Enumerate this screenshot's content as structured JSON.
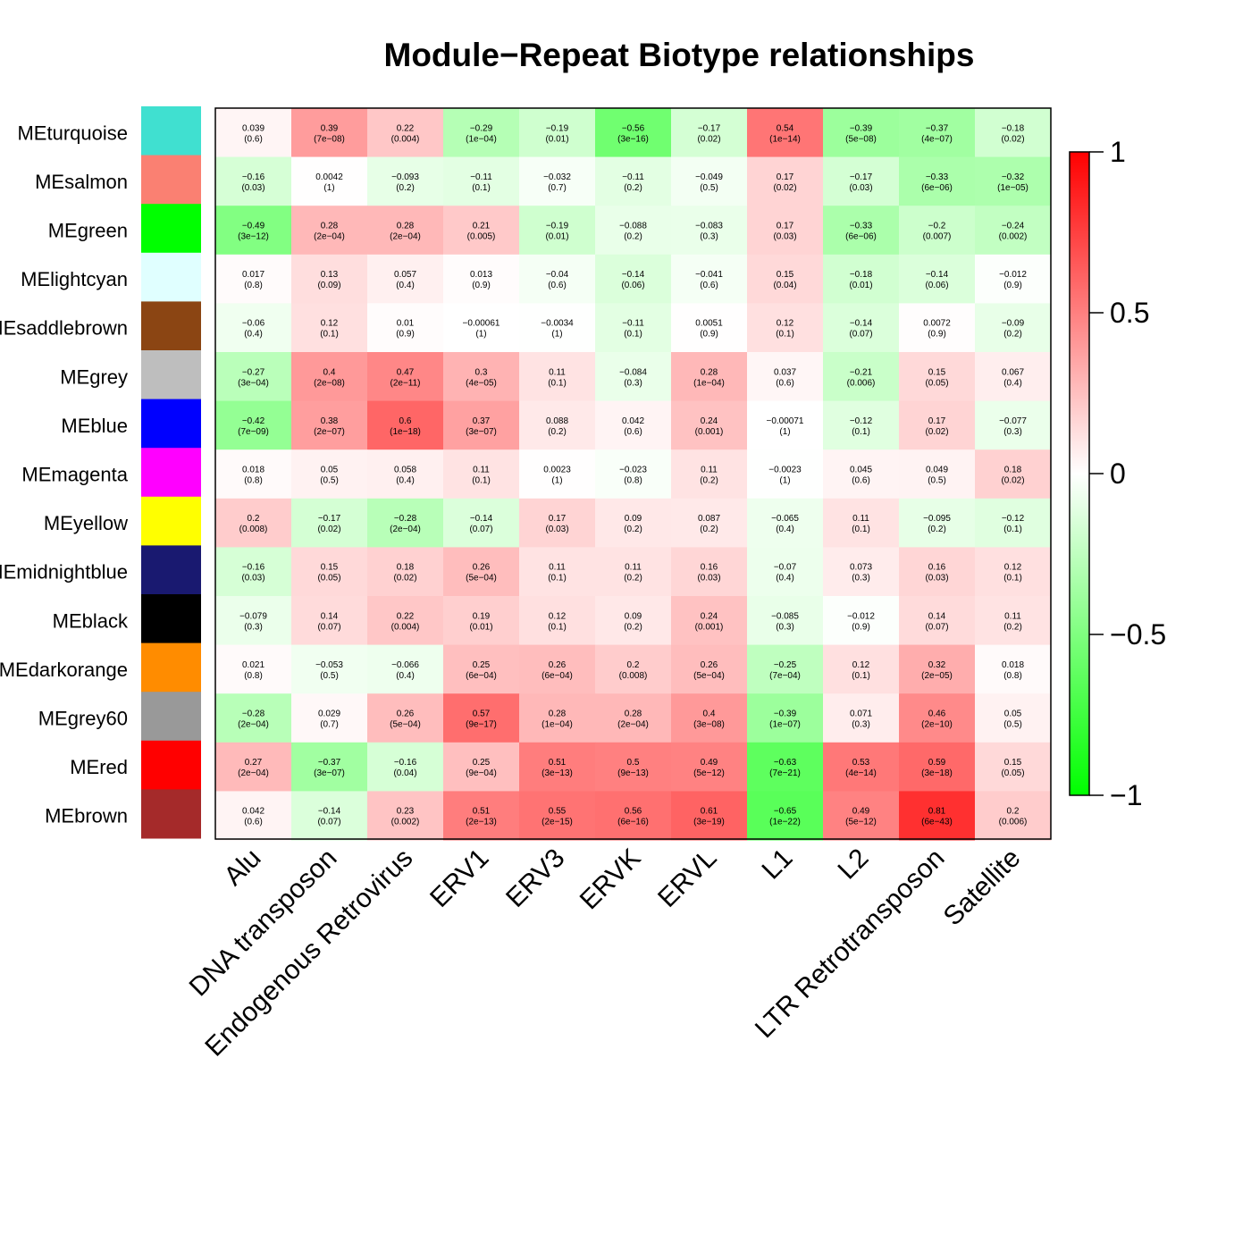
{
  "chart_data": {
    "type": "heatmap",
    "title": "Module−Repeat Biotype relationships",
    "columns": [
      "Alu",
      "DNA transposon",
      "Endogenous Retrovirus",
      "ERV1",
      "ERV3",
      "ERVK",
      "ERVL",
      "L1",
      "L2",
      "LTR Retrotransposon",
      "Satellite"
    ],
    "rows": [
      {
        "name": "MEturquoise",
        "color": "#40e0d0",
        "values": [
          "0.039",
          "0.39",
          "0.22",
          "−0.29",
          "−0.19",
          "−0.56",
          "−0.17",
          "0.54",
          "−0.39",
          "−0.37",
          "−0.18"
        ],
        "pvalues": [
          "(0.6)",
          "(7e−08)",
          "(0.004)",
          "(1e−04)",
          "(0.01)",
          "(3e−16)",
          "(0.02)",
          "(1e−14)",
          "(5e−08)",
          "(4e−07)",
          "(0.02)"
        ]
      },
      {
        "name": "MEsalmon",
        "color": "#fa8072",
        "values": [
          "−0.16",
          "0.0042",
          "−0.093",
          "−0.11",
          "−0.032",
          "−0.11",
          "−0.049",
          "0.17",
          "−0.17",
          "−0.33",
          "−0.32"
        ],
        "pvalues": [
          "(0.03)",
          "(1)",
          "(0.2)",
          "(0.1)",
          "(0.7)",
          "(0.2)",
          "(0.5)",
          "(0.02)",
          "(0.03)",
          "(6e−06)",
          "(1e−05)"
        ]
      },
      {
        "name": "MEgreen",
        "color": "#00ff00",
        "values": [
          "−0.49",
          "0.28",
          "0.28",
          "0.21",
          "−0.19",
          "−0.088",
          "−0.083",
          "0.17",
          "−0.33",
          "−0.2",
          "−0.24"
        ],
        "pvalues": [
          "(3e−12)",
          "(2e−04)",
          "(2e−04)",
          "(0.005)",
          "(0.01)",
          "(0.2)",
          "(0.3)",
          "(0.03)",
          "(6e−06)",
          "(0.007)",
          "(0.002)"
        ]
      },
      {
        "name": "MElightcyan",
        "color": "#e0ffff",
        "values": [
          "0.017",
          "0.13",
          "0.057",
          "0.013",
          "−0.04",
          "−0.14",
          "−0.041",
          "0.15",
          "−0.18",
          "−0.14",
          "−0.012"
        ],
        "pvalues": [
          "(0.8)",
          "(0.09)",
          "(0.4)",
          "(0.9)",
          "(0.6)",
          "(0.06)",
          "(0.6)",
          "(0.04)",
          "(0.01)",
          "(0.06)",
          "(0.9)"
        ]
      },
      {
        "name": "MEsaddlebrown",
        "color": "#8b4513",
        "values": [
          "−0.06",
          "0.12",
          "0.01",
          "−0.00061",
          "−0.0034",
          "−0.11",
          "0.0051",
          "0.12",
          "−0.14",
          "0.0072",
          "−0.09"
        ],
        "pvalues": [
          "(0.4)",
          "(0.1)",
          "(0.9)",
          "(1)",
          "(1)",
          "(0.1)",
          "(0.9)",
          "(0.1)",
          "(0.07)",
          "(0.9)",
          "(0.2)"
        ]
      },
      {
        "name": "MEgrey",
        "color": "#bebebe",
        "values": [
          "−0.27",
          "0.4",
          "0.47",
          "0.3",
          "0.11",
          "−0.084",
          "0.28",
          "0.037",
          "−0.21",
          "0.15",
          "0.067"
        ],
        "pvalues": [
          "(3e−04)",
          "(2e−08)",
          "(2e−11)",
          "(4e−05)",
          "(0.1)",
          "(0.3)",
          "(1e−04)",
          "(0.6)",
          "(0.006)",
          "(0.05)",
          "(0.4)"
        ]
      },
      {
        "name": "MEblue",
        "color": "#0000ff",
        "values": [
          "−0.42",
          "0.38",
          "0.6",
          "0.37",
          "0.088",
          "0.042",
          "0.24",
          "−0.00071",
          "−0.12",
          "0.17",
          "−0.077"
        ],
        "pvalues": [
          "(7e−09)",
          "(2e−07)",
          "(1e−18)",
          "(3e−07)",
          "(0.2)",
          "(0.6)",
          "(0.001)",
          "(1)",
          "(0.1)",
          "(0.02)",
          "(0.3)"
        ]
      },
      {
        "name": "MEmagenta",
        "color": "#ff00ff",
        "values": [
          "0.018",
          "0.05",
          "0.058",
          "0.11",
          "0.0023",
          "−0.023",
          "0.11",
          "−0.0023",
          "0.045",
          "0.049",
          "0.18"
        ],
        "pvalues": [
          "(0.8)",
          "(0.5)",
          "(0.4)",
          "(0.1)",
          "(1)",
          "(0.8)",
          "(0.2)",
          "(1)",
          "(0.6)",
          "(0.5)",
          "(0.02)"
        ]
      },
      {
        "name": "MEyellow",
        "color": "#ffff00",
        "values": [
          "0.2",
          "−0.17",
          "−0.28",
          "−0.14",
          "0.17",
          "0.09",
          "0.087",
          "−0.065",
          "0.11",
          "−0.095",
          "−0.12"
        ],
        "pvalues": [
          "(0.008)",
          "(0.02)",
          "(2e−04)",
          "(0.07)",
          "(0.03)",
          "(0.2)",
          "(0.2)",
          "(0.4)",
          "(0.1)",
          "(0.2)",
          "(0.1)"
        ]
      },
      {
        "name": "MEmidnightblue",
        "color": "#191970",
        "values": [
          "−0.16",
          "0.15",
          "0.18",
          "0.26",
          "0.11",
          "0.11",
          "0.16",
          "−0.07",
          "0.073",
          "0.16",
          "0.12"
        ],
        "pvalues": [
          "(0.03)",
          "(0.05)",
          "(0.02)",
          "(5e−04)",
          "(0.1)",
          "(0.2)",
          "(0.03)",
          "(0.4)",
          "(0.3)",
          "(0.03)",
          "(0.1)"
        ]
      },
      {
        "name": "MEblack",
        "color": "#000000",
        "values": [
          "−0.079",
          "0.14",
          "0.22",
          "0.19",
          "0.12",
          "0.09",
          "0.24",
          "−0.085",
          "−0.012",
          "0.14",
          "0.11"
        ],
        "pvalues": [
          "(0.3)",
          "(0.07)",
          "(0.004)",
          "(0.01)",
          "(0.1)",
          "(0.2)",
          "(0.001)",
          "(0.3)",
          "(0.9)",
          "(0.07)",
          "(0.2)"
        ]
      },
      {
        "name": "MEdarkorange",
        "color": "#ff8c00",
        "values": [
          "0.021",
          "−0.053",
          "−0.066",
          "0.25",
          "0.26",
          "0.2",
          "0.26",
          "−0.25",
          "0.12",
          "0.32",
          "0.018"
        ],
        "pvalues": [
          "(0.8)",
          "(0.5)",
          "(0.4)",
          "(6e−04)",
          "(6e−04)",
          "(0.008)",
          "(5e−04)",
          "(7e−04)",
          "(0.1)",
          "(2e−05)",
          "(0.8)"
        ]
      },
      {
        "name": "MEgrey60",
        "color": "#999999",
        "values": [
          "−0.28",
          "0.029",
          "0.26",
          "0.57",
          "0.28",
          "0.28",
          "0.4",
          "−0.39",
          "0.071",
          "0.46",
          "0.05"
        ],
        "pvalues": [
          "(2e−04)",
          "(0.7)",
          "(5e−04)",
          "(9e−17)",
          "(1e−04)",
          "(2e−04)",
          "(3e−08)",
          "(1e−07)",
          "(0.3)",
          "(2e−10)",
          "(0.5)"
        ]
      },
      {
        "name": "MEred",
        "color": "#ff0000",
        "values": [
          "0.27",
          "−0.37",
          "−0.16",
          "0.25",
          "0.51",
          "0.5",
          "0.49",
          "−0.63",
          "0.53",
          "0.59",
          "0.15"
        ],
        "pvalues": [
          "(2e−04)",
          "(3e−07)",
          "(0.04)",
          "(9e−04)",
          "(3e−13)",
          "(9e−13)",
          "(5e−12)",
          "(7e−21)",
          "(4e−14)",
          "(3e−18)",
          "(0.05)"
        ]
      },
      {
        "name": "MEbrown",
        "color": "#a52a2a",
        "values": [
          "0.042",
          "−0.14",
          "0.23",
          "0.51",
          "0.55",
          "0.56",
          "0.61",
          "−0.65",
          "0.49",
          "0.81",
          "0.2"
        ],
        "pvalues": [
          "(0.6)",
          "(0.07)",
          "(0.002)",
          "(2e−13)",
          "(2e−15)",
          "(6e−16)",
          "(3e−19)",
          "(1e−22)",
          "(5e−12)",
          "(6e−43)",
          "(0.006)"
        ]
      }
    ],
    "colorscale": {
      "low": "#00ff00",
      "mid": "#ffffff",
      "high": "#ff0000",
      "min": -1,
      "max": 1
    },
    "legend": {
      "ticks": [
        "1",
        "0.5",
        "0",
        "−0.5",
        "−1"
      ],
      "values": [
        1,
        0.5,
        0,
        -0.5,
        -1
      ]
    }
  }
}
